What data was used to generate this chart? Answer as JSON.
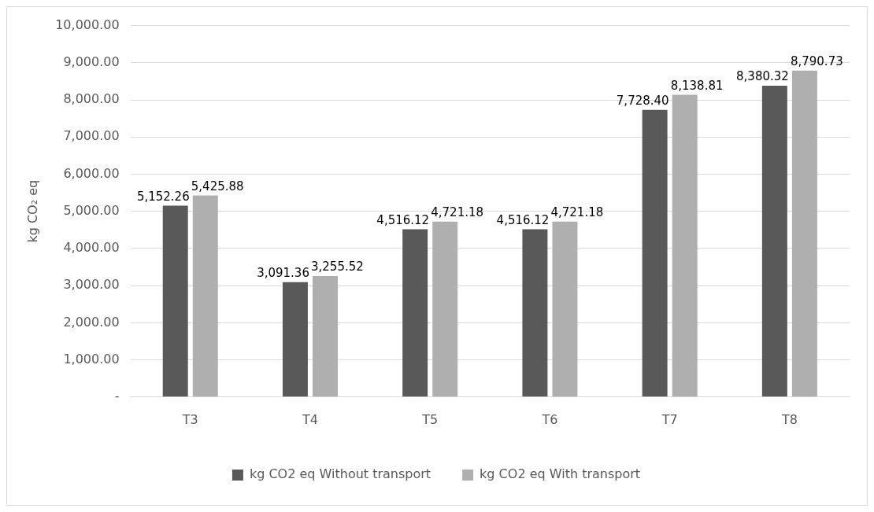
{
  "chart_data": {
    "type": "bar",
    "ylabel": "kg CO₂ eq",
    "categories": [
      "T3",
      "T4",
      "T5",
      "T6",
      "T7",
      "T8"
    ],
    "series": [
      {
        "name": "kg CO2 eq Without transport",
        "color": "#595959",
        "values": [
          5152.26,
          3091.36,
          4516.12,
          4516.12,
          7728.4,
          8380.32
        ],
        "value_labels": [
          "5,152.26",
          "3,091.36",
          "4,516.12",
          "4,516.12",
          "7,728.40",
          "8,380.32"
        ]
      },
      {
        "name": "kg CO2 eq With transport",
        "color": "#afafaf",
        "values": [
          5425.88,
          3255.52,
          4721.18,
          4721.18,
          8138.81,
          8790.73
        ],
        "value_labels": [
          "5,425.88",
          "3,255.52",
          "4,721.18",
          "4,721.18",
          "8,138.81",
          "8,790.73"
        ]
      }
    ],
    "ylim": [
      0,
      10000
    ],
    "yticks": [
      {
        "value": 0,
        "label": "-"
      },
      {
        "value": 1000,
        "label": "1,000.00"
      },
      {
        "value": 2000,
        "label": "2,000.00"
      },
      {
        "value": 3000,
        "label": "3,000.00"
      },
      {
        "value": 4000,
        "label": "4,000.00"
      },
      {
        "value": 5000,
        "label": "5,000.00"
      },
      {
        "value": 6000,
        "label": "6,000.00"
      },
      {
        "value": 7000,
        "label": "7,000.00"
      },
      {
        "value": 8000,
        "label": "8,000.00"
      },
      {
        "value": 9000,
        "label": "9,000.00"
      },
      {
        "value": 10000,
        "label": "10,000.00"
      }
    ],
    "grid": "y",
    "legend": "bottom"
  }
}
